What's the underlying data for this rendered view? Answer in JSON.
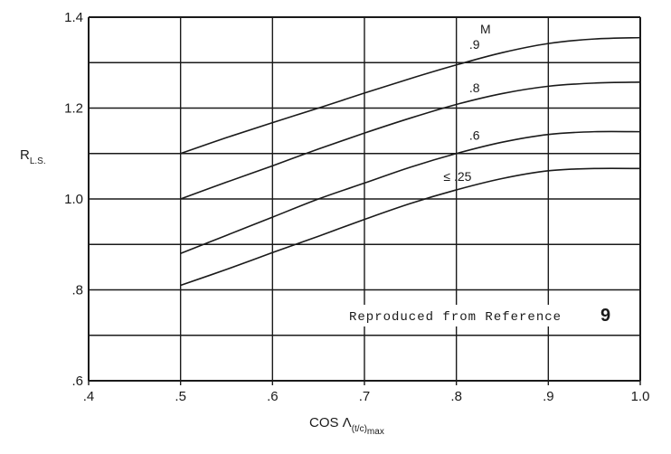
{
  "chart_data": {
    "type": "line",
    "title": "",
    "xlabel": {
      "main": "COS Λ",
      "subscript": "(t/c)",
      "sub_subscript": "max"
    },
    "ylabel": {
      "main": "R",
      "subscript": "L.S."
    },
    "xlim": [
      0.4,
      1.0
    ],
    "ylim": [
      0.6,
      1.4
    ],
    "x_ticks": [
      0.4,
      0.5,
      0.6,
      0.7,
      0.8,
      0.9,
      1.0
    ],
    "x_tick_labels": [
      ".4",
      ".5",
      ".6",
      ".7",
      ".8",
      ".9",
      "1.0"
    ],
    "y_ticks": [
      0.6,
      0.8,
      1.0,
      1.2,
      1.4
    ],
    "y_tick_labels": [
      ".6",
      ".8",
      "1.0",
      "1.2",
      "1.4"
    ],
    "grid": {
      "vertical": [
        0.4,
        0.5,
        0.6,
        0.7,
        0.8,
        0.9,
        1.0
      ],
      "horizontal": [
        0.6,
        0.7,
        0.8,
        0.9,
        1.0,
        1.1,
        1.2,
        1.3,
        1.4
      ]
    },
    "series_header": "M",
    "series": [
      {
        "name": ".9",
        "x": [
          0.5,
          0.55,
          0.6,
          0.65,
          0.7,
          0.75,
          0.8,
          0.85,
          0.9,
          0.95,
          1.0
        ],
        "y": [
          1.1,
          1.135,
          1.168,
          1.2,
          1.233,
          1.265,
          1.295,
          1.322,
          1.342,
          1.352,
          1.355
        ]
      },
      {
        "name": ".8",
        "x": [
          0.5,
          0.55,
          0.6,
          0.65,
          0.7,
          0.75,
          0.8,
          0.85,
          0.9,
          0.95,
          1.0
        ],
        "y": [
          1.0,
          1.037,
          1.073,
          1.11,
          1.145,
          1.178,
          1.208,
          1.232,
          1.248,
          1.255,
          1.257
        ]
      },
      {
        "name": ".6",
        "x": [
          0.5,
          0.55,
          0.6,
          0.65,
          0.7,
          0.75,
          0.8,
          0.85,
          0.9,
          0.95,
          1.0
        ],
        "y": [
          0.88,
          0.92,
          0.96,
          1.0,
          1.035,
          1.07,
          1.1,
          1.125,
          1.142,
          1.148,
          1.148
        ]
      },
      {
        "name": "≤ .25",
        "x": [
          0.5,
          0.55,
          0.6,
          0.65,
          0.7,
          0.75,
          0.8,
          0.85,
          0.9,
          0.95,
          1.0
        ],
        "y": [
          0.81,
          0.845,
          0.882,
          0.918,
          0.955,
          0.99,
          1.02,
          1.045,
          1.062,
          1.067,
          1.067
        ]
      }
    ],
    "annotation": {
      "text": "Reproduced from Reference",
      "number": "9"
    }
  }
}
